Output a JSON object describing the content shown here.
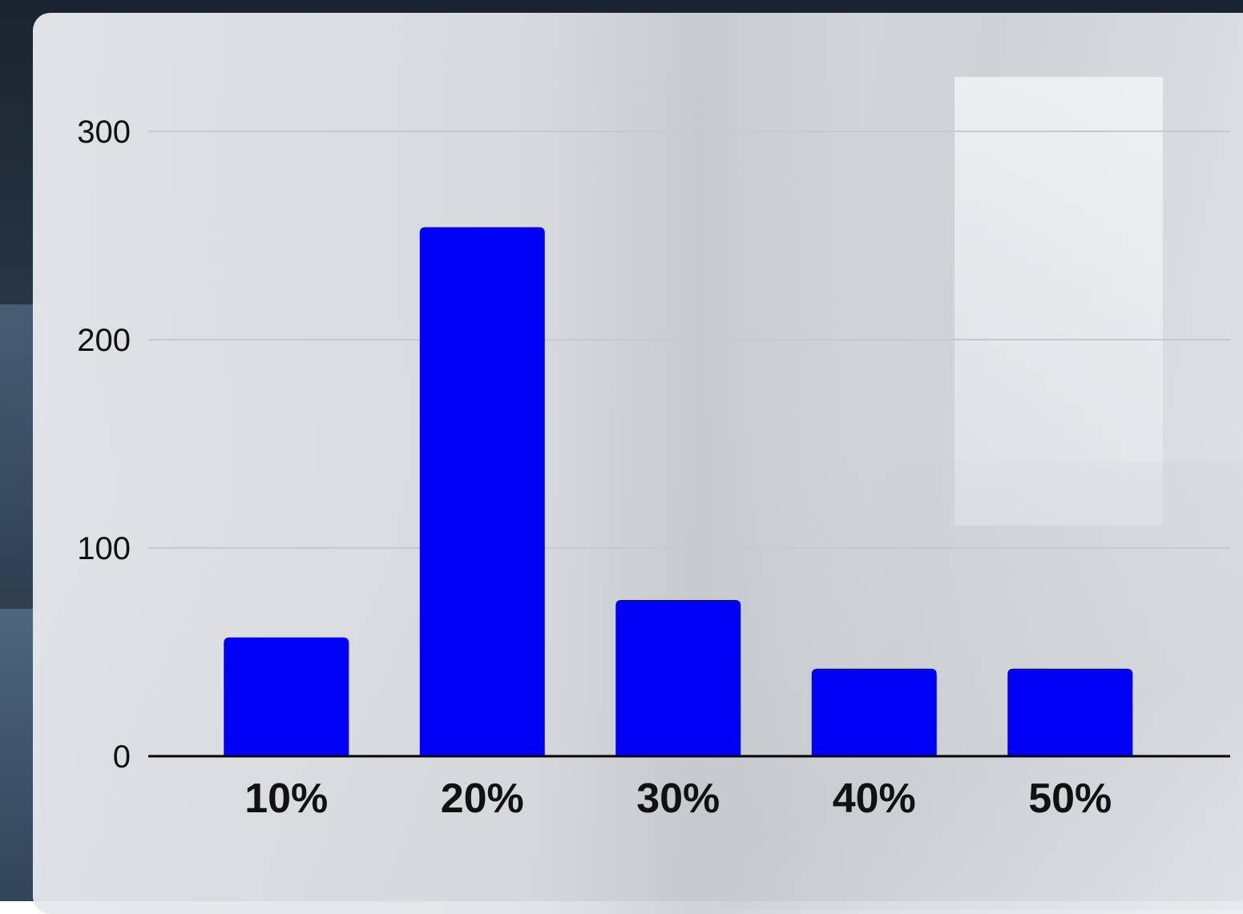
{
  "chart_data": {
    "type": "bar",
    "categories": [
      "10%",
      "20%",
      "30%",
      "40%",
      "50%"
    ],
    "values": [
      57,
      254,
      75,
      42,
      42
    ],
    "title": "",
    "xlabel": "",
    "ylabel": "",
    "ylim": [
      0,
      300
    ],
    "yticks": [
      "0",
      "100",
      "200",
      "300"
    ],
    "grid": true,
    "legend": "none",
    "bar_color": "#0000f5",
    "axis_color": "#000000",
    "grid_color": "#c6c9cd"
  }
}
